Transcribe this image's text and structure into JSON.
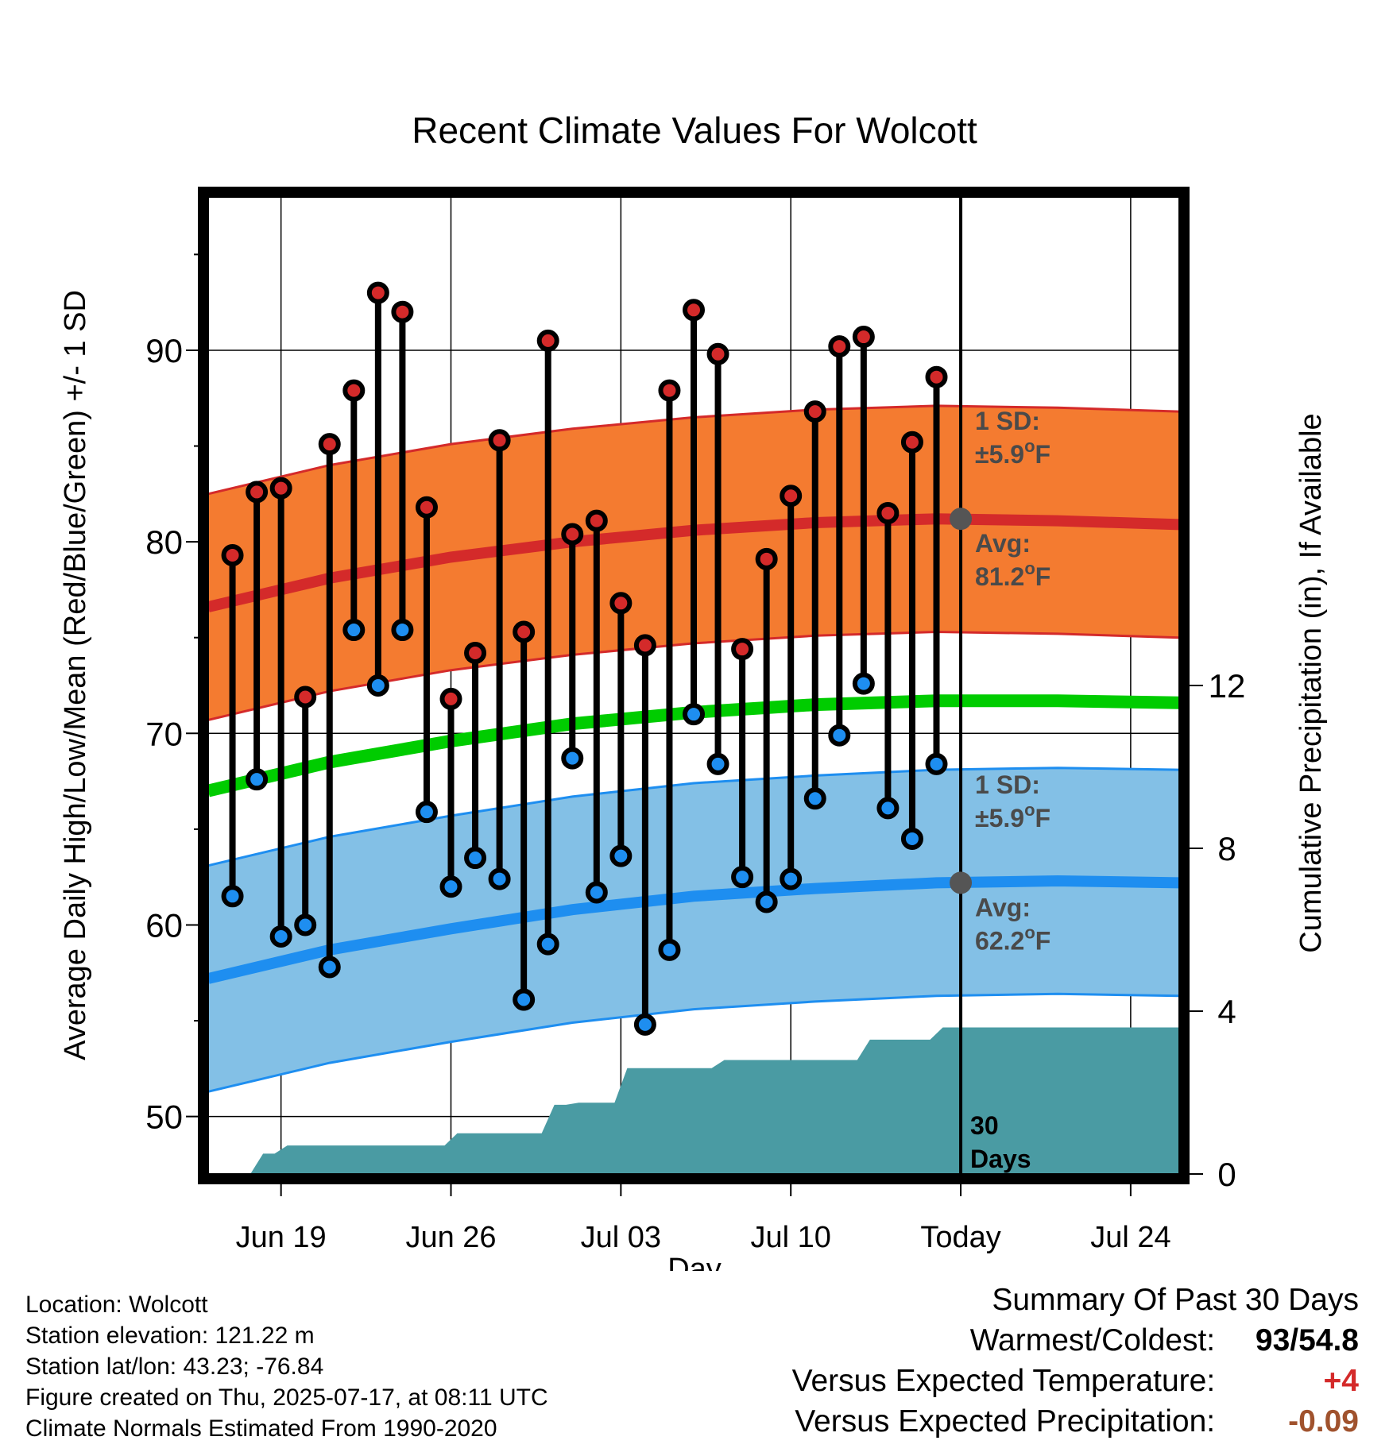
{
  "chart_data": {
    "type": "line",
    "title": "Recent Climate Values For Wolcott",
    "xlabel": "Day",
    "ylabel_left": "Average Daily High/Low/Mean (Red/Blue/Green) +/- 1 SD",
    "ylabel_right": "Cumulative Precipitation (in), If Available",
    "ylim": [
      47,
      98
    ],
    "y2lim": [
      0,
      24
    ],
    "yticks": [
      "50",
      "60",
      "70",
      "80",
      "90"
    ],
    "y2ticks": [
      "0",
      "4",
      "8",
      "12"
    ],
    "xticks": [
      "Jun 19",
      "Jun 26",
      "Jul 03",
      "Jul 10",
      "Today",
      "Jul 24"
    ],
    "x_range_days": [
      "2025-06-16",
      "2025-07-26"
    ],
    "days": [
      "2025-06-17",
      "2025-06-18",
      "2025-06-19",
      "2025-06-20",
      "2025-06-21",
      "2025-06-22",
      "2025-06-23",
      "2025-06-24",
      "2025-06-25",
      "2025-06-26",
      "2025-06-27",
      "2025-06-28",
      "2025-06-29",
      "2025-06-30",
      "2025-07-01",
      "2025-07-02",
      "2025-07-03",
      "2025-07-04",
      "2025-07-05",
      "2025-07-06",
      "2025-07-07",
      "2025-07-08",
      "2025-07-09",
      "2025-07-10",
      "2025-07-11",
      "2025-07-12",
      "2025-07-13",
      "2025-07-14",
      "2025-07-15",
      "2025-07-16"
    ],
    "highs": [
      79.3,
      82.6,
      82.8,
      71.9,
      85.1,
      87.9,
      93.0,
      92.0,
      81.8,
      71.8,
      74.2,
      85.3,
      75.3,
      90.5,
      80.4,
      81.1,
      76.8,
      74.6,
      87.9,
      92.1,
      89.8,
      74.4,
      79.1,
      82.4,
      86.8,
      90.2,
      90.7,
      81.5,
      85.2,
      88.6
    ],
    "lows": [
      61.5,
      67.6,
      59.4,
      60.0,
      57.8,
      75.4,
      72.5,
      75.4,
      65.9,
      62.0,
      63.5,
      62.4,
      56.1,
      59.0,
      68.7,
      61.7,
      63.6,
      54.8,
      58.7,
      71.0,
      68.4,
      62.5,
      61.2,
      62.4,
      66.6,
      69.9,
      72.6,
      66.1,
      64.5,
      68.4
    ],
    "normals": {
      "days": [
        "2025-06-16",
        "2025-06-21",
        "2025-06-26",
        "2025-07-01",
        "2025-07-06",
        "2025-07-11",
        "2025-07-16",
        "2025-07-21",
        "2025-07-26"
      ],
      "high_avg": [
        76.6,
        78.1,
        79.2,
        80.0,
        80.6,
        81.0,
        81.2,
        81.1,
        80.9
      ],
      "low_avg": [
        57.2,
        58.7,
        59.8,
        60.8,
        61.5,
        61.9,
        62.2,
        62.3,
        62.2
      ],
      "mean_avg": [
        67.0,
        68.5,
        69.6,
        70.5,
        71.1,
        71.5,
        71.7,
        71.7,
        71.6
      ],
      "sd": 5.9
    },
    "precip": {
      "days": [
        "2025-06-17",
        "2025-06-18",
        "2025-06-19",
        "2025-06-20",
        "2025-06-21",
        "2025-06-22",
        "2025-06-23",
        "2025-06-24",
        "2025-06-25",
        "2025-06-26",
        "2025-06-27",
        "2025-06-28",
        "2025-06-29",
        "2025-06-30",
        "2025-07-01",
        "2025-07-02",
        "2025-07-03",
        "2025-07-04",
        "2025-07-05",
        "2025-07-06",
        "2025-07-07",
        "2025-07-08",
        "2025-07-09",
        "2025-07-10",
        "2025-07-11",
        "2025-07-12",
        "2025-07-13",
        "2025-07-14",
        "2025-07-15",
        "2025-07-16"
      ],
      "cumulative": [
        0.0,
        0.5,
        0.7,
        0.7,
        0.7,
        0.7,
        0.7,
        0.7,
        0.7,
        1.0,
        1.0,
        1.0,
        1.0,
        1.7,
        1.75,
        1.75,
        2.6,
        2.6,
        2.6,
        2.6,
        2.8,
        2.8,
        2.8,
        2.8,
        2.8,
        2.8,
        3.3,
        3.3,
        3.3,
        3.6
      ],
      "final": 3.6
    },
    "annotations": {
      "high_sd_line1": "1 SD:",
      "high_sd_line2": "±5.9",
      "high_avg_line1": "Avg:",
      "high_avg_line2": "81.2",
      "low_sd_line1": "1 SD:",
      "low_sd_line2": "±5.9",
      "low_avg_line1": "Avg:",
      "low_avg_line2": "62.2",
      "deg_sup": "o",
      "unit": "F",
      "days_line1": "30",
      "days_line2": "Days"
    },
    "colors": {
      "high_band": "#f47b30",
      "high_line": "#d42a2a",
      "low_band": "#83c0e6",
      "low_line": "#1e8ef0",
      "mean_line": "#00cc00",
      "precip": "#4a9ba3",
      "high_dot": "#d42a2a",
      "low_dot": "#1e8ef0",
      "annotation": "#4a4a4a"
    }
  },
  "info": {
    "location": "Location: Wolcott",
    "elevation": "Station elevation: 121.22 m",
    "latlon": "Station lat/lon: 43.23; -76.84",
    "created": "Figure created on Thu, 2025-07-17, at 08:11 UTC",
    "normals": "Climate Normals Estimated From 1990-2020"
  },
  "summary": {
    "title": "Summary Of Past 30 Days",
    "warmest_label": "Warmest/Coldest:",
    "warmest_value": "93/54.8",
    "temp_label": "Versus Expected Temperature:",
    "temp_value": "+4",
    "temp_color": "#d42a2a",
    "precip_label": "Versus Expected Precipitation:",
    "precip_value": "-0.09",
    "precip_color": "#a0522d"
  }
}
